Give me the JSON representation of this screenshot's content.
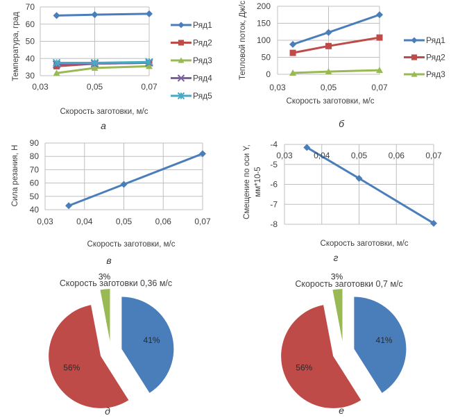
{
  "colors": {
    "series1": "#4a7ebb",
    "series2": "#be4b48",
    "series3": "#98b954",
    "series4": "#7d60a0",
    "series5": "#46aac5",
    "grid": "#bfbfbf"
  },
  "chart_data": [
    {
      "id": "a",
      "type": "line",
      "caption": "а",
      "title": "",
      "xlabel": "Скорость заготовки, м/с",
      "ylabel": "Температура, град",
      "xlim": [
        0.03,
        0.07
      ],
      "ylim": [
        30,
        70
      ],
      "xticks": [
        0.03,
        0.05,
        0.07
      ],
      "xtick_labels": [
        "0,03",
        "0,05",
        "0,07"
      ],
      "yticks": [
        30,
        40,
        50,
        60,
        70
      ],
      "ytick_labels": [
        "30",
        "40",
        "50",
        "60",
        "70"
      ],
      "grid": true,
      "legend": "right",
      "x": [
        0.036,
        0.05,
        0.07
      ],
      "series": [
        {
          "name": "Ряд1",
          "marker": "diamond",
          "values": [
            65,
            65.5,
            66
          ]
        },
        {
          "name": "Ряд2",
          "marker": "square",
          "values": [
            35.5,
            37,
            37.5
          ]
        },
        {
          "name": "Ряд3",
          "marker": "triangle",
          "values": [
            31.5,
            34.5,
            35.5
          ]
        },
        {
          "name": "Ряд4",
          "marker": "x",
          "values": [
            36.5,
            37,
            37.5
          ]
        },
        {
          "name": "Ряд5",
          "marker": "star",
          "values": [
            37.5,
            37.5,
            38
          ]
        }
      ]
    },
    {
      "id": "b",
      "type": "line",
      "caption": "б",
      "title": "",
      "xlabel": "Скорость заготовки, м/с",
      "ylabel": "Тепловой поток, Дж/с",
      "xlim": [
        0.03,
        0.07
      ],
      "ylim": [
        0,
        200
      ],
      "xticks": [
        0.03,
        0.05,
        0.07
      ],
      "xtick_labels": [
        "0,03",
        "0,05",
        "0,07"
      ],
      "yticks": [
        0,
        50,
        100,
        150,
        200
      ],
      "ytick_labels": [
        "0",
        "50",
        "100",
        "150",
        "200"
      ],
      "grid": true,
      "legend": "right",
      "x": [
        0.036,
        0.05,
        0.07
      ],
      "series": [
        {
          "name": "Ряд1",
          "marker": "diamond",
          "values": [
            88,
            123,
            175
          ]
        },
        {
          "name": "Ряд2",
          "marker": "square",
          "values": [
            63,
            83,
            108
          ]
        },
        {
          "name": "Ряд3",
          "marker": "triangle",
          "values": [
            4,
            8,
            12
          ]
        }
      ]
    },
    {
      "id": "v",
      "type": "line",
      "caption": "в",
      "title": "",
      "xlabel": "Скорость заготовки, м/с",
      "ylabel": "Сила резания, Н",
      "xlim": [
        0.03,
        0.07
      ],
      "ylim": [
        40,
        90
      ],
      "xticks": [
        0.03,
        0.04,
        0.05,
        0.06,
        0.07
      ],
      "xtick_labels": [
        "0,03",
        "0,04",
        "0,05",
        "0,06",
        "0,07"
      ],
      "yticks": [
        40,
        50,
        60,
        70,
        80,
        90
      ],
      "ytick_labels": [
        "40",
        "50",
        "60",
        "70",
        "80",
        "90"
      ],
      "grid": true,
      "legend": "none",
      "x": [
        0.036,
        0.05,
        0.07
      ],
      "series": [
        {
          "name": "Ряд1",
          "marker": "diamond",
          "values": [
            43,
            59,
            82
          ]
        }
      ]
    },
    {
      "id": "g",
      "type": "line",
      "caption": "г",
      "title": "",
      "xlabel": "Скорость заготовки, м/с",
      "ylabel": "Смещение по оси Y, мм*10-5",
      "ylabel_lines": [
        "Смещение по оси Y,",
        "мм*10-5"
      ],
      "xlim": [
        0.03,
        0.07
      ],
      "ylim": [
        -8,
        -4
      ],
      "xticks": [
        0.03,
        0.04,
        0.05,
        0.06,
        0.07
      ],
      "xtick_labels": [
        "0,03",
        "0,04",
        "0,05",
        "0,06",
        "0,07"
      ],
      "xaxis_position": "top",
      "yticks": [
        -8,
        -7,
        -6,
        -5,
        -4
      ],
      "ytick_labels": [
        "-8",
        "-7",
        "-6",
        "-5",
        "-4"
      ],
      "grid": true,
      "legend": "none",
      "x": [
        0.036,
        0.05,
        0.07
      ],
      "series": [
        {
          "name": "Ряд1",
          "marker": "diamond",
          "values": [
            -4.15,
            -5.7,
            -7.95
          ]
        }
      ]
    },
    {
      "id": "d",
      "type": "pie",
      "caption": "д",
      "title": "Скорость заготовки 0,36 м/с",
      "exploded": true,
      "slices": [
        {
          "label": "41%",
          "value": 41,
          "color_key": "series1"
        },
        {
          "label": "56%",
          "value": 56,
          "color_key": "series2"
        },
        {
          "label": "3%",
          "value": 3,
          "color_key": "series3"
        }
      ]
    },
    {
      "id": "e",
      "type": "pie",
      "caption": "е",
      "title": "Скорость заготовки 0,7 м/с",
      "exploded": true,
      "slices": [
        {
          "label": "41%",
          "value": 41,
          "color_key": "series1"
        },
        {
          "label": "56%",
          "value": 56,
          "color_key": "series2"
        },
        {
          "label": "3%",
          "value": 3,
          "color_key": "series3"
        }
      ]
    }
  ]
}
